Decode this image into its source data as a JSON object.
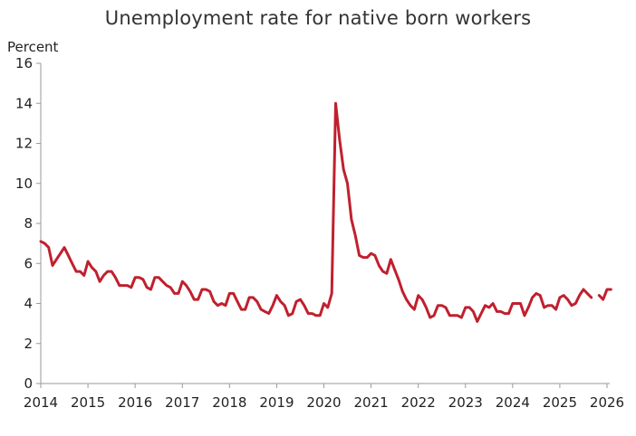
{
  "chart_data": {
    "type": "line",
    "title": "Unemployment rate for native born workers",
    "ylabel": "Percent",
    "xlabel": "",
    "ylim": [
      0,
      16
    ],
    "xlim": [
      2014,
      2026
    ],
    "y_ticks": [
      "0",
      "2",
      "4",
      "6",
      "8",
      "10",
      "12",
      "14",
      "16"
    ],
    "x_ticks": [
      "2014",
      "2015",
      "2016",
      "2017",
      "2018",
      "2019",
      "2020",
      "2021",
      "2022",
      "2023",
      "2024",
      "2025",
      "2026"
    ],
    "grid": false,
    "line_color": "#c0202e",
    "series": [
      {
        "segments": [
          {
            "x": [
              2014.0,
              2014.083,
              2014.167,
              2014.25,
              2014.333,
              2014.417,
              2014.5,
              2014.583,
              2014.667,
              2014.75,
              2014.833,
              2014.917,
              2015.0,
              2015.083,
              2015.167,
              2015.25,
              2015.333,
              2015.417,
              2015.5,
              2015.583,
              2015.667,
              2015.75,
              2015.833,
              2015.917,
              2016.0,
              2016.083,
              2016.167,
              2016.25,
              2016.333,
              2016.417,
              2016.5,
              2016.583,
              2016.667,
              2016.75,
              2016.833,
              2016.917,
              2017.0,
              2017.083,
              2017.167,
              2017.25,
              2017.333,
              2017.417,
              2017.5,
              2017.583,
              2017.667,
              2017.75,
              2017.833,
              2017.917,
              2018.0,
              2018.083,
              2018.167,
              2018.25,
              2018.333,
              2018.417,
              2018.5,
              2018.583,
              2018.667,
              2018.75,
              2018.833,
              2018.917,
              2019.0,
              2019.083,
              2019.167,
              2019.25,
              2019.333,
              2019.417,
              2019.5,
              2019.583,
              2019.667,
              2019.75,
              2019.833,
              2019.917,
              2020.0,
              2020.083,
              2020.167,
              2020.25,
              2020.333,
              2020.417,
              2020.5,
              2020.583,
              2020.667,
              2020.75,
              2020.833,
              2020.917,
              2021.0,
              2021.083,
              2021.167,
              2021.25,
              2021.333,
              2021.417,
              2021.5,
              2021.583,
              2021.667,
              2021.75,
              2021.833,
              2021.917,
              2022.0,
              2022.083,
              2022.167,
              2022.25,
              2022.333,
              2022.417,
              2022.5,
              2022.583,
              2022.667,
              2022.75,
              2022.833,
              2022.917,
              2023.0,
              2023.083,
              2023.167,
              2023.25,
              2023.333,
              2023.417,
              2023.5,
              2023.583,
              2023.667,
              2023.75,
              2023.833,
              2023.917,
              2024.0,
              2024.083,
              2024.167,
              2024.25,
              2024.333,
              2024.417,
              2024.5,
              2024.583,
              2024.667,
              2024.75,
              2024.833,
              2024.917,
              2025.0,
              2025.083,
              2025.167,
              2025.25,
              2025.333,
              2025.417,
              2025.5,
              2025.583,
              2025.667
            ],
            "y": [
              7.1,
              7.0,
              6.8,
              5.9,
              6.2,
              6.5,
              6.8,
              6.4,
              6.0,
              5.6,
              5.6,
              5.4,
              6.1,
              5.8,
              5.6,
              5.1,
              5.4,
              5.6,
              5.6,
              5.3,
              4.9,
              4.9,
              4.9,
              4.8,
              5.3,
              5.3,
              5.2,
              4.8,
              4.7,
              5.3,
              5.3,
              5.1,
              4.9,
              4.8,
              4.5,
              4.5,
              5.1,
              4.9,
              4.6,
              4.2,
              4.2,
              4.7,
              4.7,
              4.6,
              4.1,
              3.9,
              4.0,
              3.9,
              4.5,
              4.5,
              4.1,
              3.7,
              3.7,
              4.3,
              4.3,
              4.1,
              3.7,
              3.6,
              3.5,
              3.9,
              4.4,
              4.1,
              3.9,
              3.4,
              3.5,
              4.1,
              4.2,
              3.9,
              3.5,
              3.5,
              3.4,
              3.4,
              4.0,
              3.8,
              4.5,
              14.0,
              12.2,
              10.7,
              10.0,
              8.2,
              7.4,
              6.4,
              6.3,
              6.3,
              6.5,
              6.4,
              5.9,
              5.6,
              5.5,
              6.2,
              5.7,
              5.2,
              4.6,
              4.2,
              3.9,
              3.7,
              4.4,
              4.2,
              3.8,
              3.3,
              3.4,
              3.9,
              3.9,
              3.8,
              3.4,
              3.4,
              3.4,
              3.3,
              3.8,
              3.8,
              3.6,
              3.1,
              3.5,
              3.9,
              3.8,
              4.0,
              3.6,
              3.6,
              3.5,
              3.5,
              4.0,
              4.0,
              4.0,
              3.4,
              3.8,
              4.3,
              4.5,
              4.4,
              3.8,
              3.9,
              3.9,
              3.7,
              4.3,
              4.4,
              4.2,
              3.9,
              4.0,
              4.4,
              4.7,
              4.5,
              4.3
            ]
          },
          {
            "x": [
              2025.833,
              2025.917,
              2026.0,
              2026.083
            ],
            "y": [
              4.4,
              4.2,
              4.7,
              4.7
            ]
          }
        ]
      }
    ]
  }
}
